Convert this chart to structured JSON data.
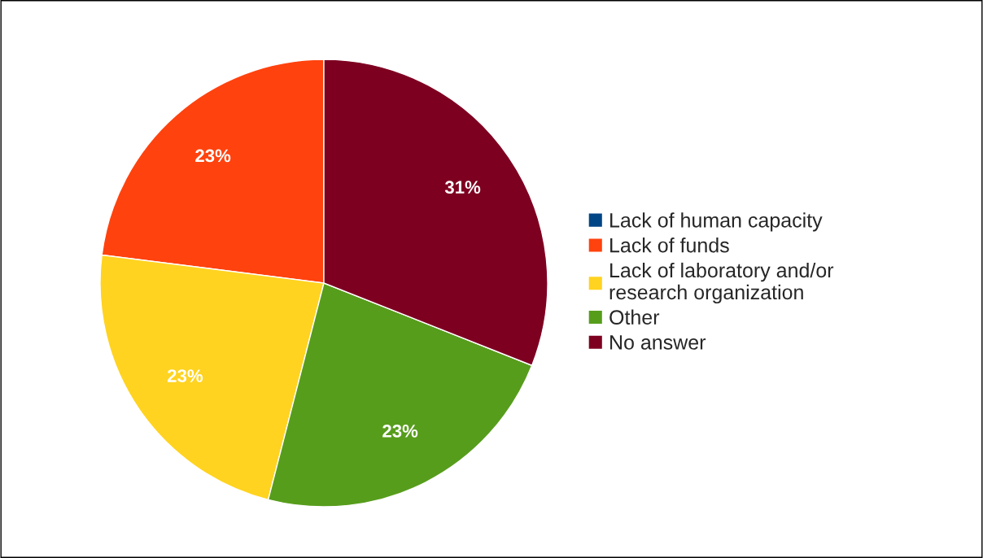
{
  "chart_data": {
    "type": "pie",
    "categories": [
      "Lack of human capacity",
      "Lack of funds",
      "Lack of laboratory and/or\nresearch organization",
      "Other",
      "No answer"
    ],
    "values": [
      0,
      23,
      23,
      23,
      31
    ],
    "colors": [
      "#004586",
      "#ff420e",
      "#ffd320",
      "#579d1c",
      "#7e0021"
    ],
    "value_labels": [
      null,
      "23%",
      "23%",
      "23%",
      "31%"
    ],
    "legend": "right"
  }
}
